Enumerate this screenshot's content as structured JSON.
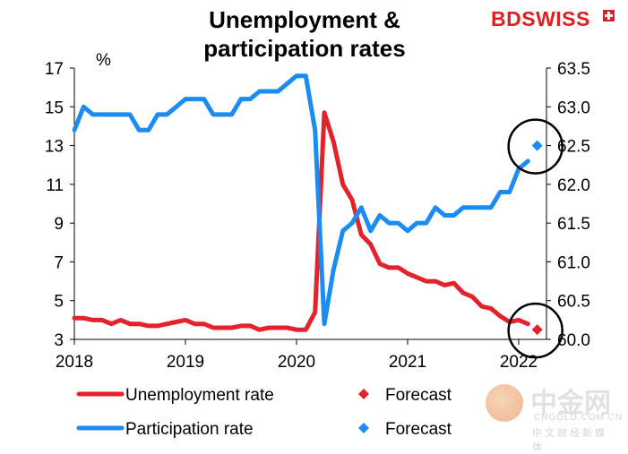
{
  "title_line1": "Unemployment &",
  "title_line2": "participation rates",
  "brand": {
    "part1": "BD",
    "part2": "SWISS"
  },
  "watermark": {
    "name": "中金网",
    "url": "CNGOLD.COM.CN",
    "sub": "中文财经新媒体"
  },
  "chart_data": {
    "type": "line",
    "title": "Unemployment & participation rates",
    "unit_label": "%",
    "x_axis": {
      "ticks": [
        "2018",
        "2019",
        "2020",
        "2021",
        "2022"
      ],
      "range": [
        "2018-01",
        "2022-04"
      ]
    },
    "y_left": {
      "ticks": [
        "3",
        "5",
        "7",
        "9",
        "11",
        "13",
        "15",
        "17"
      ],
      "range": [
        3,
        17
      ]
    },
    "y_right": {
      "ticks": [
        "60.0",
        "60.5",
        "61.0",
        "61.5",
        "62.0",
        "62.5",
        "63.0",
        "63.5"
      ],
      "range": [
        60.0,
        63.5
      ]
    },
    "series": [
      {
        "name": "Unemployment rate",
        "axis": "left",
        "color": "#e4222b",
        "style": "line",
        "x": [
          "2018-01",
          "2018-02",
          "2018-03",
          "2018-04",
          "2018-05",
          "2018-06",
          "2018-07",
          "2018-08",
          "2018-09",
          "2018-10",
          "2018-11",
          "2018-12",
          "2019-01",
          "2019-02",
          "2019-03",
          "2019-04",
          "2019-05",
          "2019-06",
          "2019-07",
          "2019-08",
          "2019-09",
          "2019-10",
          "2019-11",
          "2019-12",
          "2020-01",
          "2020-02",
          "2020-03",
          "2020-04",
          "2020-05",
          "2020-06",
          "2020-07",
          "2020-08",
          "2020-09",
          "2020-10",
          "2020-11",
          "2020-12",
          "2021-01",
          "2021-02",
          "2021-03",
          "2021-04",
          "2021-05",
          "2021-06",
          "2021-07",
          "2021-08",
          "2021-09",
          "2021-10",
          "2021-11",
          "2021-12",
          "2022-01",
          "2022-02"
        ],
        "values": [
          4.1,
          4.1,
          4.0,
          4.0,
          3.8,
          4.0,
          3.8,
          3.8,
          3.7,
          3.7,
          3.8,
          3.9,
          4.0,
          3.8,
          3.8,
          3.6,
          3.6,
          3.6,
          3.7,
          3.7,
          3.5,
          3.6,
          3.6,
          3.6,
          3.5,
          3.5,
          4.4,
          14.7,
          13.2,
          11.0,
          10.2,
          8.4,
          7.9,
          6.9,
          6.7,
          6.7,
          6.4,
          6.2,
          6.0,
          6.0,
          5.8,
          5.9,
          5.4,
          5.2,
          4.7,
          4.6,
          4.2,
          3.9,
          4.0,
          3.8
        ]
      },
      {
        "name": "Forecast",
        "axis": "left",
        "color": "#e4222b",
        "style": "marker",
        "x": [
          "2022-03"
        ],
        "values": [
          3.5
        ]
      },
      {
        "name": "Participation rate",
        "axis": "right",
        "color": "#1b8cf2",
        "style": "line",
        "x": [
          "2018-01",
          "2018-02",
          "2018-03",
          "2018-04",
          "2018-05",
          "2018-06",
          "2018-07",
          "2018-08",
          "2018-09",
          "2018-10",
          "2018-11",
          "2018-12",
          "2019-01",
          "2019-02",
          "2019-03",
          "2019-04",
          "2019-05",
          "2019-06",
          "2019-07",
          "2019-08",
          "2019-09",
          "2019-10",
          "2019-11",
          "2019-12",
          "2020-01",
          "2020-02",
          "2020-03",
          "2020-04",
          "2020-05",
          "2020-06",
          "2020-07",
          "2020-08",
          "2020-09",
          "2020-10",
          "2020-11",
          "2020-12",
          "2021-01",
          "2021-02",
          "2021-03",
          "2021-04",
          "2021-05",
          "2021-06",
          "2021-07",
          "2021-08",
          "2021-09",
          "2021-10",
          "2021-11",
          "2021-12",
          "2022-01",
          "2022-02"
        ],
        "values": [
          62.7,
          63.0,
          62.9,
          62.9,
          62.9,
          62.9,
          62.9,
          62.7,
          62.7,
          62.9,
          62.9,
          63.0,
          63.1,
          63.1,
          63.1,
          62.9,
          62.9,
          62.9,
          63.1,
          63.1,
          63.2,
          63.2,
          63.2,
          63.3,
          63.4,
          63.4,
          62.7,
          60.2,
          60.9,
          61.4,
          61.5,
          61.7,
          61.4,
          61.6,
          61.5,
          61.5,
          61.4,
          61.5,
          61.5,
          61.7,
          61.6,
          61.6,
          61.7,
          61.7,
          61.7,
          61.7,
          61.9,
          61.9,
          62.2,
          62.3
        ]
      },
      {
        "name": "Forecast",
        "axis": "right",
        "color": "#1b8cf2",
        "style": "marker",
        "x": [
          "2022-03"
        ],
        "values": [
          62.5
        ]
      }
    ],
    "legend": [
      {
        "label": "Unemployment rate",
        "kind": "line",
        "color": "#e4222b"
      },
      {
        "label": "Forecast",
        "kind": "marker",
        "color": "#e4222b"
      },
      {
        "label": "Participation rate",
        "kind": "line",
        "color": "#1b8cf2"
      },
      {
        "label": "Forecast",
        "kind": "marker",
        "color": "#1b8cf2"
      }
    ],
    "legend_position": "bottom",
    "highlight_circles": [
      "2022-03 participation forecast",
      "2022-03 unemployment forecast"
    ]
  }
}
